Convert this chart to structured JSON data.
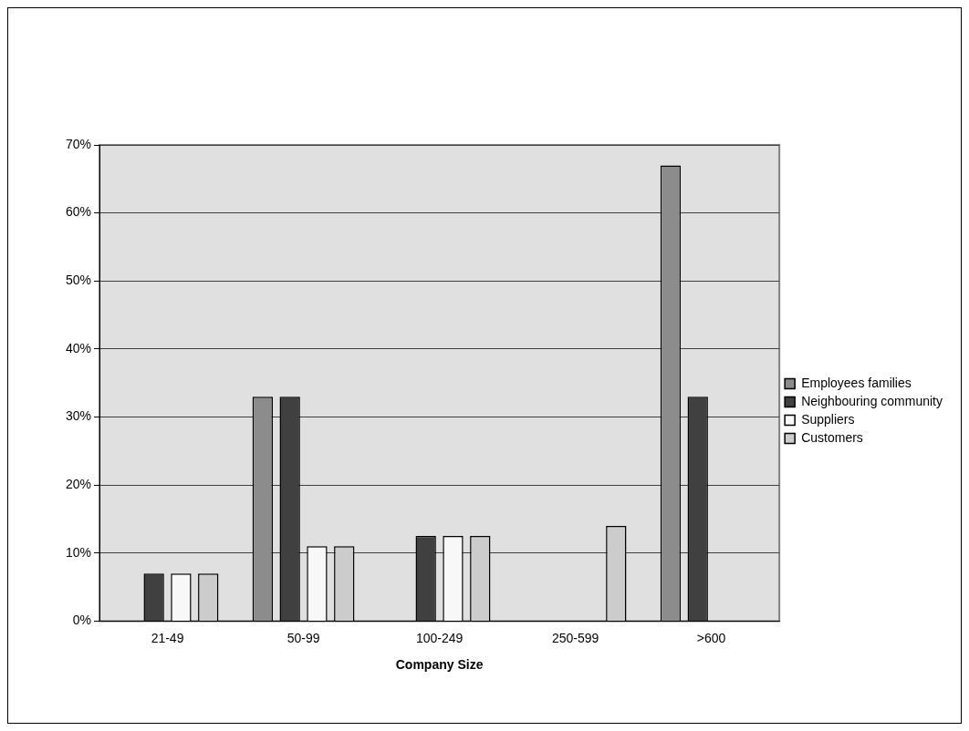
{
  "chart_data": {
    "type": "bar",
    "xlabel": "Company Size",
    "categories": [
      "21-49",
      "50-99",
      "100-249",
      "250-599",
      ">600"
    ],
    "series": [
      {
        "name": "Employees families",
        "color": "#8c8c8c",
        "values": [
          0,
          33,
          0,
          0,
          67
        ]
      },
      {
        "name": "Neighbouring community",
        "color": "#404040",
        "values": [
          7,
          33,
          12.5,
          0,
          33
        ]
      },
      {
        "name": "Suppliers",
        "color": "#f8f8f8",
        "values": [
          7,
          11,
          12.5,
          0,
          0
        ]
      },
      {
        "name": "Customers",
        "color": "#cccccc",
        "values": [
          7,
          11,
          12.5,
          14,
          0
        ]
      }
    ],
    "ylim": [
      0,
      70
    ],
    "yticks": [
      {
        "value": 0,
        "label": "0%"
      },
      {
        "value": 10,
        "label": "10%"
      },
      {
        "value": 20,
        "label": "20%"
      },
      {
        "value": 30,
        "label": "30%"
      },
      {
        "value": 40,
        "label": "40%"
      },
      {
        "value": 50,
        "label": "50%"
      },
      {
        "value": 60,
        "label": "60%"
      },
      {
        "value": 70,
        "label": "70%"
      }
    ],
    "grid": "y",
    "legend": "right"
  }
}
